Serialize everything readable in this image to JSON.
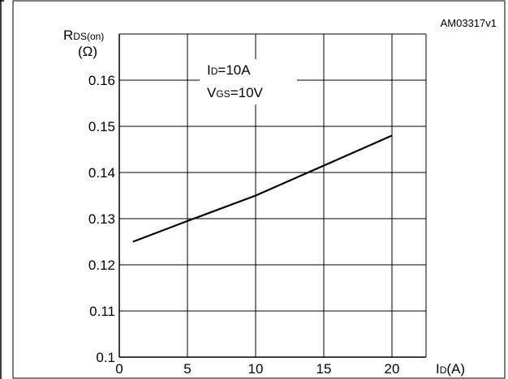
{
  "figure_id": "AM03317v1",
  "chart_data": {
    "type": "line",
    "ylabel_main": "R",
    "ylabel_sub": "DS(on)",
    "ylabel_unit": "(Ω)",
    "xlabel_main": "I",
    "xlabel_sub": "D",
    "xlabel_unit": "(A)",
    "xlim": [
      0,
      22.5
    ],
    "ylim": [
      0.1,
      0.17
    ],
    "x_ticks": [
      0,
      5,
      10,
      15,
      20
    ],
    "y_ticks": [
      0.1,
      0.11,
      0.12,
      0.13,
      0.14,
      0.15,
      0.16
    ],
    "y_tick_labels": [
      "0.1",
      "0.11",
      "0.12",
      "0.13",
      "0.14",
      "0.15",
      "0.16"
    ],
    "x_tick_labels": [
      "0",
      "5",
      "10",
      "15",
      "20"
    ],
    "grid": true,
    "annotation": [
      {
        "main": "I",
        "sub": "D",
        "rest": "=10A"
      },
      {
        "main": "V",
        "sub": "GS",
        "rest": "=10V"
      }
    ],
    "series": [
      {
        "x": [
          1,
          5,
          10,
          15,
          20
        ],
        "values": [
          0.125,
          0.1295,
          0.135,
          0.1415,
          0.148
        ]
      }
    ]
  }
}
